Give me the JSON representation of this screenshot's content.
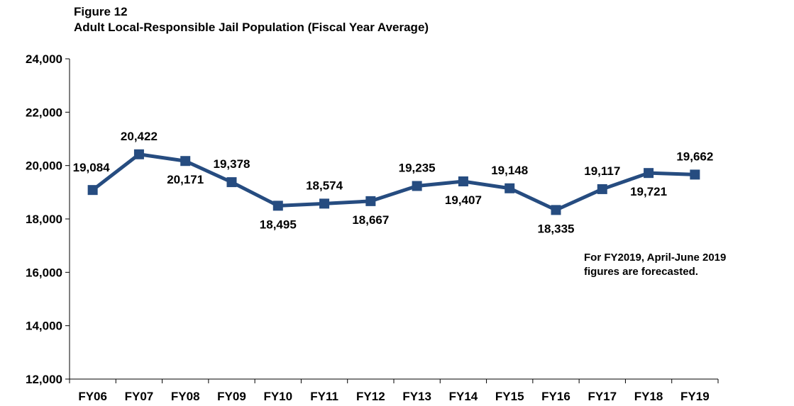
{
  "figure": {
    "number": "Figure 12",
    "title": "Adult Local-Responsible Jail Population (Fiscal Year Average)"
  },
  "note": {
    "line1": "For FY2019, April-June 2019",
    "line2": "figures are forecasted."
  },
  "colors": {
    "series": "#264C80",
    "axis": "#000000"
  },
  "chart_data": {
    "type": "line",
    "title": "Adult Local-Responsible Jail Population (Fiscal Year Average)",
    "categories": [
      "FY06",
      "FY07",
      "FY08",
      "FY09",
      "FY10",
      "FY11",
      "FY12",
      "FY13",
      "FY14",
      "FY15",
      "FY16",
      "FY17",
      "FY18",
      "FY19"
    ],
    "series": [
      {
        "values": [
          19084,
          20422,
          20171,
          19378,
          18495,
          18574,
          18667,
          19235,
          19407,
          19148,
          18335,
          19117,
          19721,
          19662
        ]
      }
    ],
    "data_labels": [
      "19,084",
      "20,422",
      "20,171",
      "19,378",
      "18,495",
      "18,574",
      "18,667",
      "19,235",
      "19,407",
      "19,148",
      "18,335",
      "19,117",
      "19,721",
      "19,662"
    ],
    "label_positions": [
      "left",
      "above",
      "below",
      "above",
      "below",
      "above",
      "below",
      "above",
      "below",
      "above",
      "below",
      "above",
      "below",
      "above"
    ],
    "ylim": [
      12000,
      24000
    ],
    "yticks": [
      12000,
      14000,
      16000,
      18000,
      20000,
      22000,
      24000
    ],
    "ytick_labels": [
      "12,000",
      "14,000",
      "16,000",
      "18,000",
      "20,000",
      "22,000",
      "24,000"
    ],
    "marker": "square",
    "grid": false,
    "legend": "none"
  }
}
